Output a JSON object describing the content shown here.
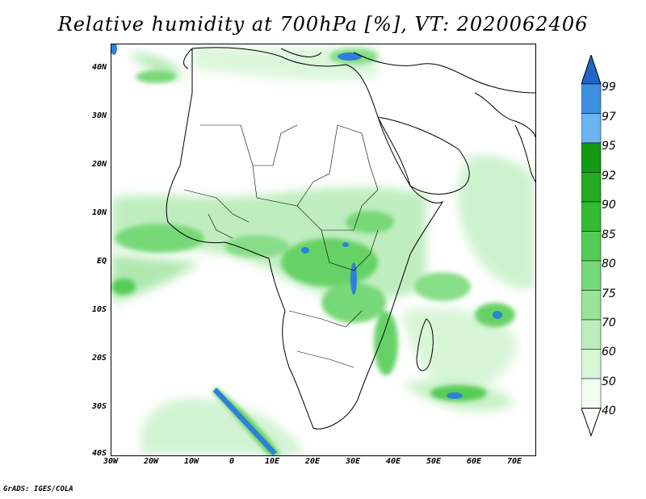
{
  "title": "Relative humidity at 700hPa [%], VT: 2020062406",
  "footer": "GrADS: IGES/COLA",
  "lat_labels": [
    "40N",
    "30N",
    "20N",
    "10N",
    "EQ",
    "10S",
    "20S",
    "30S",
    "40S"
  ],
  "lon_labels": [
    "30W",
    "20W",
    "10W",
    "0",
    "10E",
    "20E",
    "30E",
    "40E",
    "50E",
    "60E",
    "70E"
  ],
  "colorbar": {
    "labels": [
      "99",
      "97",
      "95",
      "92",
      "90",
      "85",
      "80",
      "75",
      "70",
      "60",
      "50",
      "40"
    ],
    "colors": [
      "#2166c8",
      "#3f8fe0",
      "#6cb4f0",
      "#119911",
      "#22aa22",
      "#33bb33",
      "#55cc55",
      "#77d877",
      "#99e399",
      "#bbeebb",
      "#d8f6d8",
      "#f2fcf2"
    ]
  },
  "map": {
    "lon_range": [
      -30,
      75
    ],
    "lat_range": [
      -40,
      45
    ],
    "land_fill": "#ffffff",
    "humid_fill": "#44cc44"
  }
}
